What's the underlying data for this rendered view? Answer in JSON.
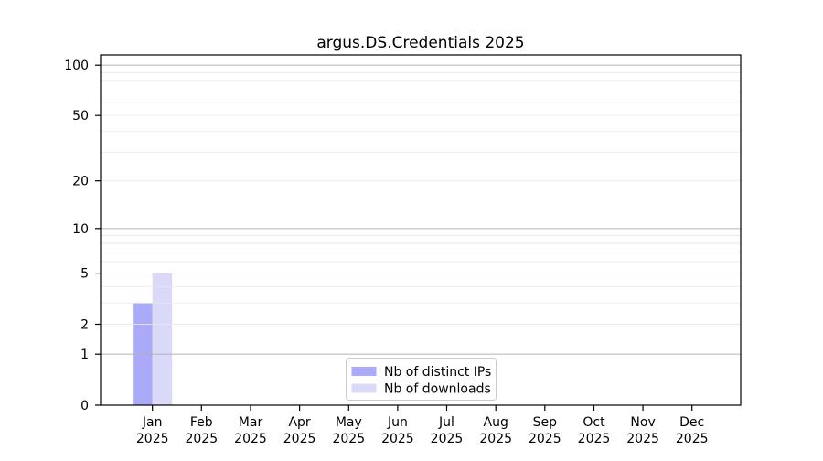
{
  "chart_data": {
    "type": "bar",
    "title": "argus.DS.Credentials 2025",
    "categories": [
      "Jan",
      "Feb",
      "Mar",
      "Apr",
      "May",
      "Jun",
      "Jul",
      "Aug",
      "Sep",
      "Oct",
      "Nov",
      "Dec"
    ],
    "year_label": "2025",
    "series": [
      {
        "name": "Nb of distinct IPs",
        "color": "#aaaaf8",
        "values": [
          3,
          0,
          0,
          0,
          0,
          0,
          0,
          0,
          0,
          0,
          0,
          0
        ]
      },
      {
        "name": "Nb of downloads",
        "color": "#dadaf8",
        "values": [
          5,
          0,
          0,
          0,
          0,
          0,
          0,
          0,
          0,
          0,
          0,
          0
        ]
      }
    ],
    "xlabel": "",
    "ylabel": "",
    "yscale": "log1p",
    "ylim": [
      0,
      115
    ],
    "yticks": [
      0,
      1,
      2,
      5,
      10,
      20,
      50,
      100
    ],
    "grid": {
      "on": true,
      "which": "both",
      "major_ticks": [
        1,
        10,
        100
      ],
      "minor_ticks": [
        2,
        3,
        4,
        5,
        6,
        7,
        8,
        9,
        20,
        30,
        40,
        50,
        60,
        70,
        80,
        90
      ],
      "major_color": "#b0b0b0",
      "minor_color": "#e8e8e8"
    },
    "legend": {
      "position": "lower center"
    },
    "axis_color": "#000000",
    "background": "#ffffff"
  }
}
